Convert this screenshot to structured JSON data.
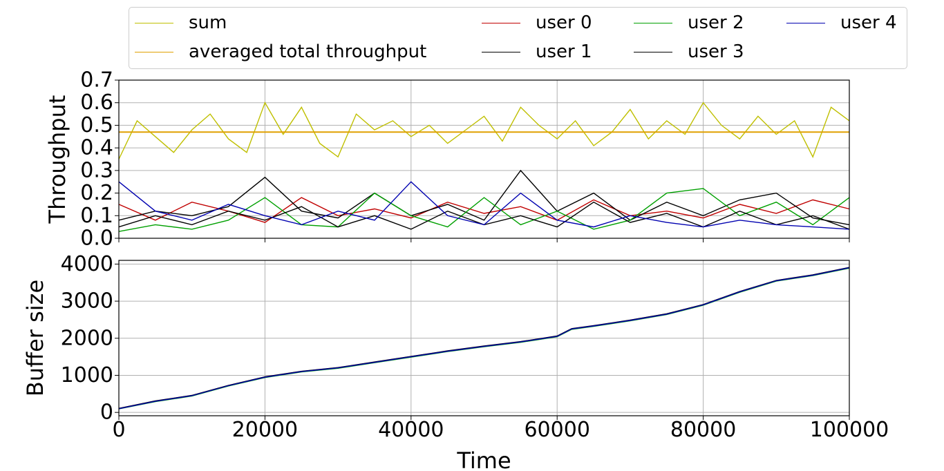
{
  "legend": {
    "entries": [
      {
        "label": "sum",
        "color": "#bfbf00"
      },
      {
        "label": "averaged total throughput",
        "color": "#e0a000"
      },
      {
        "label": "user 0",
        "color": "#c00000"
      },
      {
        "label": "user 1",
        "color": "#000000"
      },
      {
        "label": "user 2",
        "color": "#00a000"
      },
      {
        "label": "user 3",
        "color": "#000000"
      },
      {
        "label": "user 4",
        "color": "#0000b0"
      }
    ]
  },
  "chart_data": [
    {
      "type": "line",
      "ylabel": "Throughput",
      "xlim": [
        0,
        100000
      ],
      "ylim": [
        0,
        0.7
      ],
      "yticks": [
        "0.0",
        "0.1",
        "0.2",
        "0.3",
        "0.4",
        "0.5",
        "0.6",
        "0.7"
      ],
      "grid": true,
      "series": [
        {
          "name": "sum",
          "color": "#bfbf00",
          "x": [
            0,
            2500,
            5000,
            7500,
            10000,
            12500,
            15000,
            17500,
            20000,
            22500,
            25000,
            27500,
            30000,
            32500,
            35000,
            37500,
            40000,
            42500,
            45000,
            47500,
            50000,
            52500,
            55000,
            57500,
            60000,
            62500,
            65000,
            67500,
            70000,
            72500,
            75000,
            77500,
            80000,
            82500,
            85000,
            87500,
            90000,
            92500,
            95000,
            97500,
            100000
          ],
          "y": [
            0.35,
            0.52,
            0.45,
            0.38,
            0.48,
            0.55,
            0.44,
            0.38,
            0.6,
            0.46,
            0.58,
            0.42,
            0.36,
            0.55,
            0.48,
            0.52,
            0.45,
            0.5,
            0.42,
            0.48,
            0.54,
            0.43,
            0.58,
            0.5,
            0.44,
            0.52,
            0.41,
            0.47,
            0.57,
            0.44,
            0.52,
            0.46,
            0.6,
            0.5,
            0.44,
            0.54,
            0.46,
            0.52,
            0.36,
            0.58,
            0.52
          ]
        },
        {
          "name": "averaged total throughput",
          "color": "#e0a000",
          "x": [
            0,
            100000
          ],
          "y": [
            0.47,
            0.47
          ]
        },
        {
          "name": "user 0",
          "color": "#c00000",
          "x": [
            0,
            5000,
            10000,
            15000,
            20000,
            25000,
            30000,
            35000,
            40000,
            45000,
            50000,
            55000,
            60000,
            65000,
            70000,
            75000,
            80000,
            85000,
            90000,
            95000,
            100000
          ],
          "y": [
            0.15,
            0.08,
            0.16,
            0.12,
            0.07,
            0.18,
            0.1,
            0.13,
            0.09,
            0.16,
            0.11,
            0.14,
            0.08,
            0.17,
            0.1,
            0.12,
            0.09,
            0.15,
            0.11,
            0.17,
            0.13
          ]
        },
        {
          "name": "user 1",
          "color": "#000000",
          "x": [
            0,
            5000,
            10000,
            15000,
            20000,
            25000,
            30000,
            35000,
            40000,
            45000,
            50000,
            55000,
            60000,
            65000,
            70000,
            75000,
            80000,
            85000,
            90000,
            95000,
            100000
          ],
          "y": [
            0.08,
            0.12,
            0.1,
            0.14,
            0.27,
            0.12,
            0.09,
            0.2,
            0.1,
            0.15,
            0.08,
            0.3,
            0.12,
            0.2,
            0.08,
            0.16,
            0.1,
            0.17,
            0.2,
            0.09,
            0.06
          ]
        },
        {
          "name": "user 2",
          "color": "#00a000",
          "x": [
            0,
            5000,
            10000,
            15000,
            20000,
            25000,
            30000,
            35000,
            40000,
            45000,
            50000,
            55000,
            60000,
            65000,
            70000,
            75000,
            80000,
            85000,
            90000,
            95000,
            100000
          ],
          "y": [
            0.03,
            0.06,
            0.04,
            0.08,
            0.18,
            0.06,
            0.05,
            0.2,
            0.1,
            0.05,
            0.18,
            0.06,
            0.12,
            0.04,
            0.08,
            0.2,
            0.22,
            0.1,
            0.16,
            0.06,
            0.18
          ]
        },
        {
          "name": "user 3",
          "color": "#000000",
          "x": [
            0,
            5000,
            10000,
            15000,
            20000,
            25000,
            30000,
            35000,
            40000,
            45000,
            50000,
            55000,
            60000,
            65000,
            70000,
            75000,
            80000,
            85000,
            90000,
            95000,
            100000
          ],
          "y": [
            0.05,
            0.1,
            0.06,
            0.12,
            0.08,
            0.14,
            0.05,
            0.1,
            0.04,
            0.12,
            0.06,
            0.1,
            0.05,
            0.16,
            0.07,
            0.11,
            0.05,
            0.12,
            0.06,
            0.1,
            0.04
          ]
        },
        {
          "name": "user 4",
          "color": "#0000b0",
          "x": [
            0,
            5000,
            10000,
            15000,
            20000,
            25000,
            30000,
            35000,
            40000,
            45000,
            50000,
            55000,
            60000,
            65000,
            70000,
            75000,
            80000,
            85000,
            90000,
            95000,
            100000
          ],
          "y": [
            0.25,
            0.12,
            0.08,
            0.15,
            0.1,
            0.06,
            0.12,
            0.08,
            0.25,
            0.1,
            0.06,
            0.2,
            0.08,
            0.05,
            0.1,
            0.07,
            0.05,
            0.08,
            0.06,
            0.05,
            0.04
          ]
        }
      ]
    },
    {
      "type": "line",
      "xlabel": "Time",
      "ylabel": "Buffer size",
      "xlim": [
        0,
        100000
      ],
      "ylim": [
        -90,
        4100
      ],
      "xticks": [
        "0",
        "20000",
        "40000",
        "60000",
        "80000",
        "100000"
      ],
      "yticks": [
        "0",
        "1000",
        "2000",
        "3000",
        "4000"
      ],
      "grid": true,
      "series": [
        {
          "name": "user 0",
          "color": "#c00000",
          "x": [
            0,
            5000,
            10000,
            15000,
            20000,
            25000,
            30000,
            35000,
            40000,
            45000,
            50000,
            55000,
            60000,
            62000,
            65000,
            70000,
            75000,
            80000,
            85000,
            90000,
            95000,
            100000
          ],
          "y": [
            100,
            300,
            450,
            720,
            950,
            1100,
            1200,
            1350,
            1500,
            1650,
            1780,
            1900,
            2050,
            2250,
            2330,
            2480,
            2650,
            2900,
            3250,
            3550,
            3700,
            3900
          ]
        },
        {
          "name": "user 1",
          "color": "#000000",
          "x": [
            0,
            5000,
            10000,
            15000,
            20000,
            25000,
            30000,
            35000,
            40000,
            45000,
            50000,
            55000,
            60000,
            62000,
            65000,
            70000,
            75000,
            80000,
            85000,
            90000,
            95000,
            100000
          ],
          "y": [
            110,
            310,
            460,
            730,
            960,
            1110,
            1210,
            1360,
            1510,
            1660,
            1790,
            1910,
            2060,
            2260,
            2340,
            2490,
            2660,
            2910,
            3260,
            3560,
            3710,
            3910
          ]
        },
        {
          "name": "user 2",
          "color": "#00a000",
          "x": [
            0,
            5000,
            10000,
            15000,
            20000,
            25000,
            30000,
            35000,
            40000,
            45000,
            50000,
            55000,
            60000,
            62000,
            65000,
            70000,
            75000,
            80000,
            85000,
            90000,
            95000,
            100000
          ],
          "y": [
            95,
            290,
            440,
            710,
            940,
            1090,
            1190,
            1340,
            1490,
            1640,
            1770,
            1890,
            2040,
            2240,
            2320,
            2470,
            2640,
            2890,
            3240,
            3540,
            3690,
            3890
          ]
        },
        {
          "name": "user 3",
          "color": "#000000",
          "x": [
            0,
            5000,
            10000,
            15000,
            20000,
            25000,
            30000,
            35000,
            40000,
            45000,
            50000,
            55000,
            60000,
            62000,
            65000,
            70000,
            75000,
            80000,
            85000,
            90000,
            95000,
            100000
          ],
          "y": [
            105,
            305,
            455,
            725,
            955,
            1105,
            1205,
            1355,
            1505,
            1655,
            1785,
            1905,
            2055,
            2255,
            2335,
            2485,
            2655,
            2905,
            3255,
            3555,
            3705,
            3905
          ]
        },
        {
          "name": "user 4",
          "color": "#0000b0",
          "x": [
            0,
            5000,
            10000,
            15000,
            20000,
            25000,
            30000,
            35000,
            40000,
            45000,
            50000,
            55000,
            60000,
            62000,
            65000,
            70000,
            75000,
            80000,
            85000,
            90000,
            95000,
            100000
          ],
          "y": [
            100,
            300,
            450,
            720,
            950,
            1100,
            1200,
            1350,
            1500,
            1650,
            1780,
            1900,
            2050,
            2250,
            2330,
            2480,
            2650,
            2900,
            3250,
            3550,
            3700,
            3900
          ]
        }
      ]
    }
  ]
}
